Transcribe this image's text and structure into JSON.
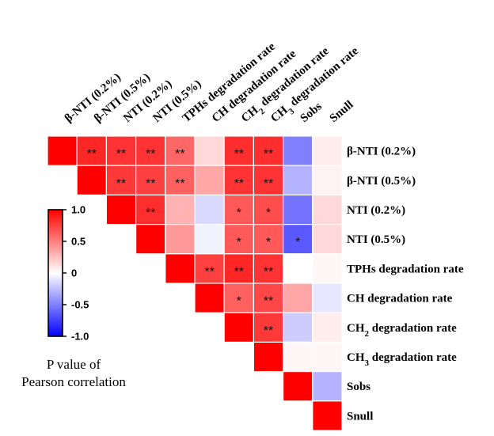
{
  "chart_data": {
    "type": "heatmap",
    "title": "",
    "columns": [
      {
        "parts": [
          {
            "t": "β-NTI (0.2%)"
          }
        ]
      },
      {
        "parts": [
          {
            "t": "β-NTI (0.5%)"
          }
        ]
      },
      {
        "parts": [
          {
            "t": "NTI (0.2%)"
          }
        ]
      },
      {
        "parts": [
          {
            "t": "NTI (0.5%)"
          }
        ]
      },
      {
        "parts": [
          {
            "t": "TPHs degradation rate"
          }
        ]
      },
      {
        "parts": [
          {
            "t": "CH degradation rate"
          }
        ]
      },
      {
        "parts": [
          {
            "t": "CH"
          },
          {
            "t": "2",
            "sub": true
          },
          {
            "t": " degradation rate"
          }
        ]
      },
      {
        "parts": [
          {
            "t": "CH"
          },
          {
            "t": "3",
            "sub": true
          },
          {
            "t": " degradation rate"
          }
        ]
      },
      {
        "parts": [
          {
            "t": "Sobs"
          }
        ]
      },
      {
        "parts": [
          {
            "t": "Snull"
          }
        ]
      }
    ],
    "rows": [
      {
        "parts": [
          {
            "t": "β-NTI (0.2%)"
          }
        ]
      },
      {
        "parts": [
          {
            "t": "β-NTI (0.5%)"
          }
        ]
      },
      {
        "parts": [
          {
            "t": "NTI (0.2%)"
          }
        ]
      },
      {
        "parts": [
          {
            "t": "NTI (0.5%)"
          }
        ]
      },
      {
        "parts": [
          {
            "t": "TPHs degradation rate"
          }
        ]
      },
      {
        "parts": [
          {
            "t": "CH degradation rate"
          }
        ]
      },
      {
        "parts": [
          {
            "t": "CH"
          },
          {
            "t": "2",
            "sub": true
          },
          {
            "t": " degradation rate"
          }
        ]
      },
      {
        "parts": [
          {
            "t": "CH"
          },
          {
            "t": "3",
            "sub": true
          },
          {
            "t": " degradation rate"
          }
        ]
      },
      {
        "parts": [
          {
            "t": "Sobs"
          }
        ]
      },
      {
        "parts": [
          {
            "t": "Snull"
          }
        ]
      }
    ],
    "values": [
      [
        1.0,
        0.85,
        0.8,
        0.8,
        0.6,
        0.15,
        0.82,
        0.82,
        -0.5,
        0.07
      ],
      [
        null,
        1.0,
        0.78,
        0.75,
        0.62,
        0.35,
        0.8,
        0.8,
        -0.3,
        0.05
      ],
      [
        null,
        null,
        1.0,
        0.82,
        0.3,
        -0.15,
        0.65,
        0.7,
        -0.55,
        0.15
      ],
      [
        null,
        null,
        null,
        1.0,
        0.4,
        -0.05,
        0.65,
        0.65,
        -0.65,
        0.15
      ],
      [
        null,
        null,
        null,
        null,
        1.0,
        0.75,
        0.85,
        0.8,
        0.0,
        0.03
      ],
      [
        null,
        null,
        null,
        null,
        null,
        1.0,
        0.62,
        0.72,
        0.35,
        -0.1
      ],
      [
        null,
        null,
        null,
        null,
        null,
        null,
        1.0,
        0.78,
        -0.2,
        0.07
      ],
      [
        null,
        null,
        null,
        null,
        null,
        null,
        null,
        1.0,
        0.03,
        0.03
      ],
      [
        null,
        null,
        null,
        null,
        null,
        null,
        null,
        null,
        1.0,
        -0.3
      ],
      [
        null,
        null,
        null,
        null,
        null,
        null,
        null,
        null,
        null,
        1.0
      ]
    ],
    "significance": [
      [
        "",
        "**",
        "**",
        "**",
        "**",
        "",
        "**",
        "**",
        "",
        ""
      ],
      [
        "",
        "",
        "**",
        "**",
        "**",
        "",
        "**",
        "**",
        "",
        ""
      ],
      [
        "",
        "",
        "",
        "**",
        "",
        "",
        "*",
        "*",
        "",
        ""
      ],
      [
        "",
        "",
        "",
        "",
        "",
        "",
        "*",
        "*",
        "*",
        ""
      ],
      [
        "",
        "",
        "",
        "",
        "",
        "**",
        "**",
        "**",
        "",
        ""
      ],
      [
        "",
        "",
        "",
        "",
        "",
        "",
        "*",
        "**",
        "",
        ""
      ],
      [
        "",
        "",
        "",
        "",
        "",
        "",
        "",
        "**",
        "",
        ""
      ],
      [
        "",
        "",
        "",
        "",
        "",
        "",
        "",
        "",
        "",
        ""
      ],
      [
        "",
        "",
        "",
        "",
        "",
        "",
        "",
        "",
        "",
        ""
      ],
      [
        "",
        "",
        "",
        "",
        "",
        "",
        "",
        "",
        "",
        ""
      ]
    ],
    "color_scale": {
      "min": -1.0,
      "max": 1.0,
      "low_color": "#0000ff",
      "mid_color": "#ffffff",
      "high_color": "#ff0000",
      "ticks": [
        "1.0",
        "0.5",
        "0",
        "-0.5",
        "-1.0"
      ],
      "tick_values": [
        1.0,
        0.5,
        0,
        -0.5,
        -1.0
      ]
    },
    "legend": {
      "title_line1": "P value of",
      "title_line2": "Pearson correlation",
      "placement": "left"
    }
  }
}
